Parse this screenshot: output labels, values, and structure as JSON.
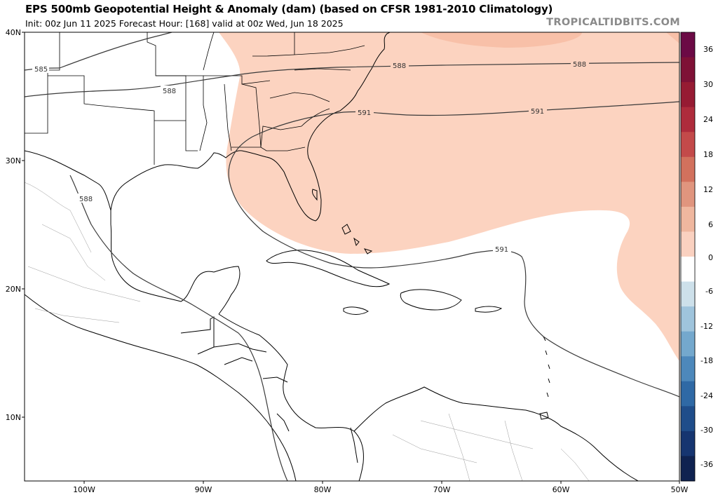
{
  "header": {
    "title": "EPS 500mb Geopotential Height & Anomaly (dam) (based on CFSR 1981-2010 Climatology)",
    "subtitle": "Init: 00z Jun 11 2025   Forecast Hour: [168]   valid at 00z Wed, Jun 18 2025",
    "site": "TROPICALTIDBITS.COM"
  },
  "axes": {
    "lat_labels": [
      "40N",
      "30N",
      "20N",
      "10N"
    ],
    "lon_labels": [
      "100W",
      "90W",
      "80W",
      "70W",
      "60W",
      "50W"
    ]
  },
  "contours": {
    "labels": [
      "585",
      "588",
      "588",
      "588",
      "588",
      "591",
      "591",
      "591"
    ]
  },
  "colorbar": {
    "levels": [
      "36",
      "30",
      "24",
      "18",
      "12",
      "6",
      "0",
      "-6",
      "-12",
      "-18",
      "-24",
      "-30",
      "-36"
    ],
    "colors": [
      "#6b0a45",
      "#7e1136",
      "#961b33",
      "#ae2c3c",
      "#c34a4a",
      "#d2715d",
      "#e0957e",
      "#efb79f",
      "#fad1c0",
      "#ffffff",
      "#cde0ea",
      "#9fc4dc",
      "#74a8cd",
      "#4d88bb",
      "#2f69a5",
      "#1f4d8a",
      "#163570",
      "#0f2250"
    ],
    "anomaly_fill_color": "#fcd3c0"
  }
}
